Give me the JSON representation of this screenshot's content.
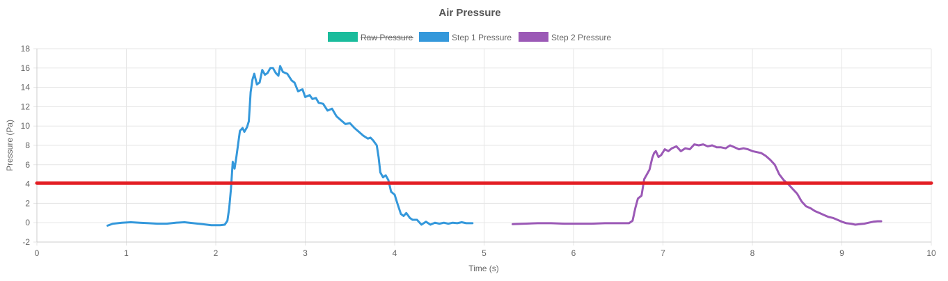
{
  "chart_data": {
    "type": "line",
    "title": "Air Pressure",
    "xlabel": "Time (s)",
    "ylabel": "Pressure (Pa)",
    "xlim": [
      0,
      10
    ],
    "ylim": [
      -2,
      18
    ],
    "xticks": [
      "0",
      "1",
      "2",
      "3",
      "4",
      "5",
      "6",
      "7",
      "8",
      "9",
      "10"
    ],
    "yticks": [
      "-2",
      "0",
      "2",
      "4",
      "6",
      "8",
      "10",
      "12",
      "14",
      "16",
      "18"
    ],
    "grid": true,
    "legend_position": "top-center",
    "threshold": {
      "value": 4.1,
      "color": "#e31e24"
    },
    "series": [
      {
        "name": "Raw Pressure",
        "color": "#1abc9c",
        "hidden": true,
        "points": []
      },
      {
        "name": "Step 1 Pressure",
        "color": "#3498db",
        "hidden": false,
        "points": [
          [
            0.79,
            -0.3
          ],
          [
            0.85,
            -0.1
          ],
          [
            0.95,
            0.0
          ],
          [
            1.05,
            0.05
          ],
          [
            1.15,
            0.0
          ],
          [
            1.25,
            -0.05
          ],
          [
            1.35,
            -0.1
          ],
          [
            1.45,
            -0.1
          ],
          [
            1.55,
            0.0
          ],
          [
            1.65,
            0.05
          ],
          [
            1.75,
            -0.05
          ],
          [
            1.85,
            -0.15
          ],
          [
            1.95,
            -0.25
          ],
          [
            2.05,
            -0.25
          ],
          [
            2.1,
            -0.2
          ],
          [
            2.13,
            0.2
          ],
          [
            2.15,
            1.5
          ],
          [
            2.17,
            3.5
          ],
          [
            2.19,
            6.3
          ],
          [
            2.21,
            5.6
          ],
          [
            2.23,
            6.8
          ],
          [
            2.27,
            9.5
          ],
          [
            2.3,
            9.8
          ],
          [
            2.32,
            9.4
          ],
          [
            2.35,
            9.9
          ],
          [
            2.37,
            10.5
          ],
          [
            2.39,
            13.5
          ],
          [
            2.41,
            14.8
          ],
          [
            2.43,
            15.4
          ],
          [
            2.46,
            14.3
          ],
          [
            2.49,
            14.5
          ],
          [
            2.52,
            15.8
          ],
          [
            2.55,
            15.3
          ],
          [
            2.58,
            15.5
          ],
          [
            2.61,
            16.0
          ],
          [
            2.64,
            16.0
          ],
          [
            2.67,
            15.5
          ],
          [
            2.7,
            15.2
          ],
          [
            2.72,
            16.2
          ],
          [
            2.75,
            15.6
          ],
          [
            2.8,
            15.4
          ],
          [
            2.85,
            14.7
          ],
          [
            2.88,
            14.5
          ],
          [
            2.92,
            13.6
          ],
          [
            2.97,
            13.8
          ],
          [
            3.0,
            13.0
          ],
          [
            3.05,
            13.2
          ],
          [
            3.08,
            12.8
          ],
          [
            3.12,
            12.9
          ],
          [
            3.15,
            12.4
          ],
          [
            3.2,
            12.3
          ],
          [
            3.25,
            11.6
          ],
          [
            3.3,
            11.8
          ],
          [
            3.35,
            11.0
          ],
          [
            3.4,
            10.6
          ],
          [
            3.45,
            10.2
          ],
          [
            3.5,
            10.3
          ],
          [
            3.55,
            9.8
          ],
          [
            3.6,
            9.4
          ],
          [
            3.65,
            9.0
          ],
          [
            3.7,
            8.7
          ],
          [
            3.73,
            8.8
          ],
          [
            3.76,
            8.5
          ],
          [
            3.8,
            8.0
          ],
          [
            3.82,
            6.8
          ],
          [
            3.84,
            5.2
          ],
          [
            3.87,
            4.7
          ],
          [
            3.9,
            4.9
          ],
          [
            3.93,
            4.4
          ],
          [
            3.96,
            3.2
          ],
          [
            4.0,
            2.9
          ],
          [
            4.03,
            2.0
          ],
          [
            4.07,
            0.9
          ],
          [
            4.1,
            0.7
          ],
          [
            4.13,
            1.0
          ],
          [
            4.17,
            0.5
          ],
          [
            4.2,
            0.3
          ],
          [
            4.25,
            0.3
          ],
          [
            4.3,
            -0.2
          ],
          [
            4.35,
            0.1
          ],
          [
            4.4,
            -0.2
          ],
          [
            4.45,
            0.0
          ],
          [
            4.5,
            -0.1
          ],
          [
            4.55,
            0.0
          ],
          [
            4.6,
            -0.1
          ],
          [
            4.65,
            0.0
          ],
          [
            4.7,
            -0.05
          ],
          [
            4.75,
            0.05
          ],
          [
            4.8,
            -0.05
          ],
          [
            4.87,
            -0.05
          ]
        ]
      },
      {
        "name": "Step 2 Pressure",
        "color": "#9b59b6",
        "hidden": false,
        "points": [
          [
            5.32,
            -0.15
          ],
          [
            5.45,
            -0.1
          ],
          [
            5.6,
            -0.05
          ],
          [
            5.75,
            -0.05
          ],
          [
            5.9,
            -0.1
          ],
          [
            6.05,
            -0.1
          ],
          [
            6.2,
            -0.1
          ],
          [
            6.35,
            -0.05
          ],
          [
            6.5,
            -0.05
          ],
          [
            6.62,
            -0.05
          ],
          [
            6.66,
            0.2
          ],
          [
            6.69,
            1.5
          ],
          [
            6.72,
            2.5
          ],
          [
            6.76,
            2.8
          ],
          [
            6.79,
            4.5
          ],
          [
            6.82,
            5.0
          ],
          [
            6.85,
            5.5
          ],
          [
            6.88,
            6.7
          ],
          [
            6.9,
            7.2
          ],
          [
            6.92,
            7.4
          ],
          [
            6.95,
            6.8
          ],
          [
            6.98,
            7.0
          ],
          [
            7.02,
            7.6
          ],
          [
            7.06,
            7.4
          ],
          [
            7.1,
            7.7
          ],
          [
            7.15,
            7.9
          ],
          [
            7.2,
            7.4
          ],
          [
            7.25,
            7.7
          ],
          [
            7.3,
            7.6
          ],
          [
            7.35,
            8.1
          ],
          [
            7.4,
            8.0
          ],
          [
            7.45,
            8.1
          ],
          [
            7.5,
            7.9
          ],
          [
            7.55,
            8.0
          ],
          [
            7.6,
            7.8
          ],
          [
            7.65,
            7.8
          ],
          [
            7.7,
            7.7
          ],
          [
            7.75,
            8.0
          ],
          [
            7.8,
            7.8
          ],
          [
            7.85,
            7.6
          ],
          [
            7.9,
            7.7
          ],
          [
            7.95,
            7.6
          ],
          [
            8.0,
            7.4
          ],
          [
            8.05,
            7.3
          ],
          [
            8.1,
            7.2
          ],
          [
            8.15,
            6.9
          ],
          [
            8.2,
            6.5
          ],
          [
            8.25,
            6.0
          ],
          [
            8.3,
            5.0
          ],
          [
            8.35,
            4.4
          ],
          [
            8.4,
            4.0
          ],
          [
            8.45,
            3.5
          ],
          [
            8.5,
            3.0
          ],
          [
            8.55,
            2.2
          ],
          [
            8.6,
            1.7
          ],
          [
            8.65,
            1.5
          ],
          [
            8.7,
            1.2
          ],
          [
            8.75,
            1.0
          ],
          [
            8.8,
            0.8
          ],
          [
            8.85,
            0.6
          ],
          [
            8.9,
            0.5
          ],
          [
            8.95,
            0.3
          ],
          [
            9.0,
            0.1
          ],
          [
            9.05,
            -0.05
          ],
          [
            9.1,
            -0.1
          ],
          [
            9.15,
            -0.2
          ],
          [
            9.2,
            -0.15
          ],
          [
            9.25,
            -0.1
          ],
          [
            9.3,
            0.0
          ],
          [
            9.35,
            0.1
          ],
          [
            9.4,
            0.15
          ],
          [
            9.44,
            0.15
          ]
        ]
      }
    ]
  }
}
